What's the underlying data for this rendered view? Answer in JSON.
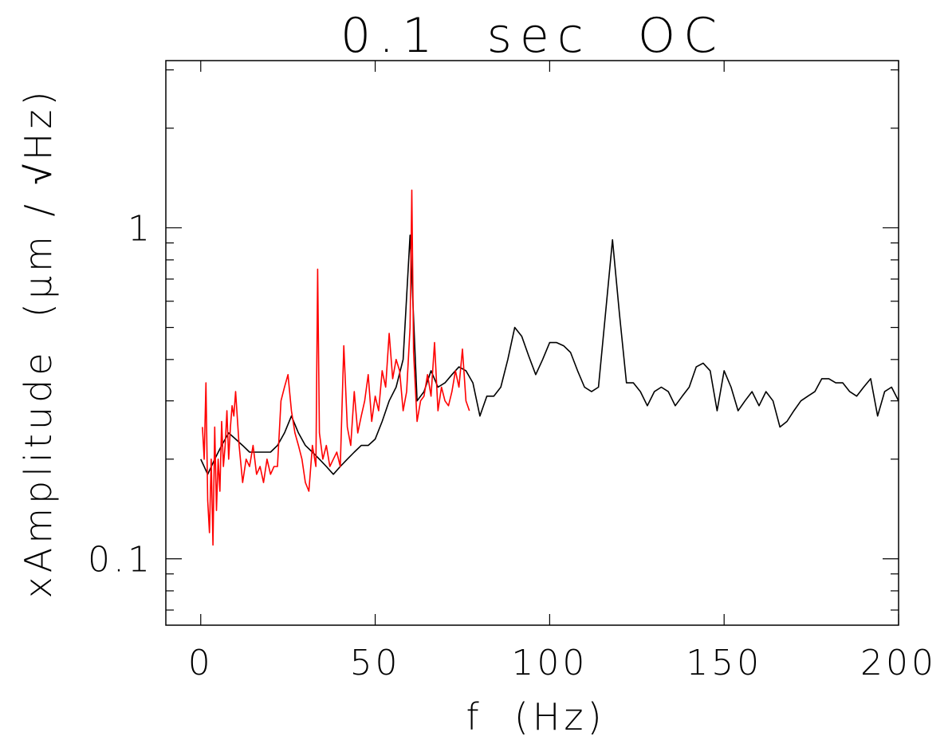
{
  "chart_data": {
    "type": "line",
    "title": "0.1  sec  OC",
    "xlabel": "f  (Hz)",
    "ylabel": "xAmplitude  (μm / √Hz)",
    "xlim": [
      -10,
      200
    ],
    "ylim": [
      0.063,
      3.2
    ],
    "yscale": "log",
    "grid": false,
    "x_ticks": [
      0,
      50,
      100,
      150,
      200
    ],
    "x_tick_labels": [
      "0",
      "50",
      "100",
      "150",
      "200"
    ],
    "y_ticks": [
      0.1,
      1
    ],
    "y_tick_labels": [
      "0.1",
      "1"
    ],
    "colors": {
      "black_series": "#000000",
      "red_series": "#ff0000"
    },
    "series": [
      {
        "color": "#000000",
        "x": [
          0,
          2,
          4,
          6,
          8,
          10,
          12,
          14,
          16,
          18,
          20,
          22,
          24,
          26,
          28,
          30,
          32,
          34,
          36,
          38,
          40,
          42,
          44,
          46,
          48,
          50,
          52,
          54,
          56,
          58,
          60,
          62,
          64,
          66,
          68,
          70,
          72,
          74,
          76,
          78,
          80,
          82,
          84,
          86,
          88,
          90,
          92,
          94,
          96,
          98,
          100,
          102,
          104,
          106,
          108,
          110,
          112,
          114,
          116,
          118,
          120,
          122,
          124,
          126,
          128,
          130,
          132,
          134,
          136,
          138,
          140,
          142,
          144,
          146,
          148,
          150,
          152,
          154,
          156,
          158,
          160,
          162,
          164,
          166,
          168,
          170,
          172,
          174,
          176,
          178,
          180,
          182,
          184,
          186,
          188,
          190,
          192,
          194,
          196,
          198,
          200
        ],
        "values": [
          0.2,
          0.18,
          0.2,
          0.22,
          0.24,
          0.23,
          0.22,
          0.21,
          0.21,
          0.21,
          0.21,
          0.22,
          0.24,
          0.27,
          0.24,
          0.22,
          0.21,
          0.2,
          0.19,
          0.18,
          0.19,
          0.2,
          0.21,
          0.22,
          0.22,
          0.23,
          0.26,
          0.3,
          0.33,
          0.4,
          0.95,
          0.3,
          0.32,
          0.37,
          0.33,
          0.34,
          0.36,
          0.38,
          0.37,
          0.34,
          0.27,
          0.31,
          0.31,
          0.33,
          0.4,
          0.5,
          0.47,
          0.41,
          0.36,
          0.4,
          0.45,
          0.45,
          0.44,
          0.42,
          0.37,
          0.33,
          0.32,
          0.33,
          0.55,
          0.92,
          0.55,
          0.34,
          0.34,
          0.32,
          0.29,
          0.32,
          0.33,
          0.32,
          0.29,
          0.31,
          0.33,
          0.38,
          0.39,
          0.37,
          0.28,
          0.37,
          0.33,
          0.28,
          0.3,
          0.32,
          0.29,
          0.32,
          0.3,
          0.25,
          0.26,
          0.28,
          0.3,
          0.31,
          0.32,
          0.35,
          0.35,
          0.34,
          0.34,
          0.32,
          0.31,
          0.33,
          0.35,
          0.27,
          0.32,
          0.33,
          0.3
        ]
      },
      {
        "color": "#ff0000",
        "x": [
          0.5,
          1,
          1.5,
          2,
          2.5,
          3,
          3.5,
          4,
          4.5,
          5,
          5.5,
          6,
          6.5,
          7,
          7.5,
          8,
          8.5,
          9,
          9.5,
          10,
          11,
          12,
          13,
          14,
          15,
          16,
          17,
          18,
          19,
          20,
          21,
          22,
          23,
          24,
          25,
          26,
          27,
          28,
          29,
          30,
          31,
          32,
          33,
          33.5,
          34,
          35,
          36,
          37,
          38,
          39,
          40,
          41,
          42,
          43,
          44,
          45,
          46,
          47,
          48,
          49,
          50,
          51,
          52,
          53,
          54,
          55,
          56,
          57,
          58,
          59,
          60,
          60.5,
          61,
          62,
          63,
          64,
          65,
          66,
          67,
          68,
          69,
          70,
          71,
          72,
          73,
          74,
          75,
          76,
          77
        ],
        "values": [
          0.25,
          0.2,
          0.34,
          0.15,
          0.12,
          0.2,
          0.11,
          0.25,
          0.14,
          0.2,
          0.16,
          0.26,
          0.19,
          0.22,
          0.28,
          0.2,
          0.25,
          0.29,
          0.27,
          0.32,
          0.22,
          0.17,
          0.2,
          0.19,
          0.22,
          0.18,
          0.19,
          0.17,
          0.2,
          0.18,
          0.19,
          0.19,
          0.3,
          0.33,
          0.36,
          0.28,
          0.24,
          0.22,
          0.2,
          0.17,
          0.16,
          0.22,
          0.19,
          0.75,
          0.24,
          0.2,
          0.22,
          0.19,
          0.2,
          0.21,
          0.19,
          0.44,
          0.25,
          0.22,
          0.32,
          0.24,
          0.27,
          0.3,
          0.36,
          0.26,
          0.31,
          0.28,
          0.37,
          0.33,
          0.48,
          0.35,
          0.4,
          0.37,
          0.28,
          0.32,
          0.5,
          1.3,
          0.42,
          0.26,
          0.3,
          0.31,
          0.36,
          0.31,
          0.45,
          0.28,
          0.33,
          0.3,
          0.29,
          0.32,
          0.37,
          0.33,
          0.43,
          0.3,
          0.28
        ]
      }
    ]
  }
}
